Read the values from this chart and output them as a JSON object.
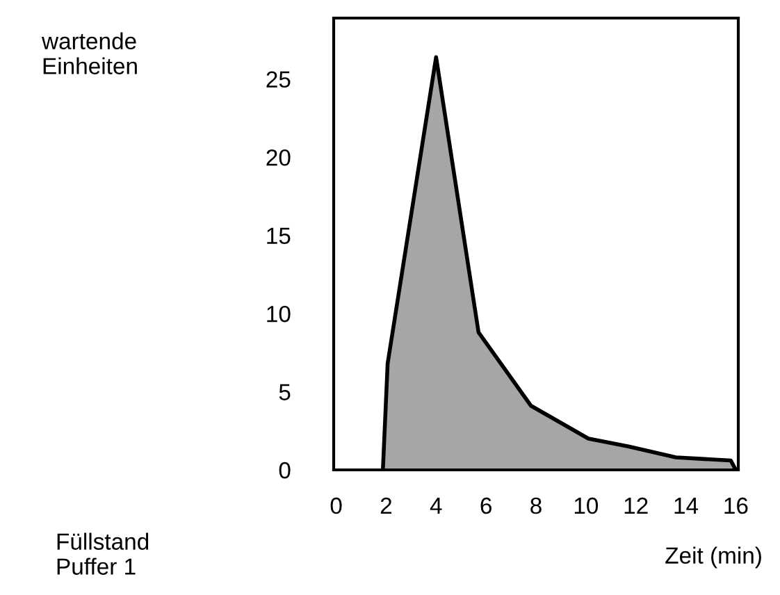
{
  "chart_data": {
    "type": "area",
    "xlabel": "Zeit (min)",
    "annotations": [
      "wartende\nEinheiten",
      "Füllstand\nPuffer 1"
    ],
    "x": [
      1.87,
      2.06,
      4.0,
      5.7,
      7.8,
      10.1,
      11.7,
      13.6,
      15.8,
      16.0
    ],
    "series": [
      {
        "color": "#a6a6a6",
        "values": [
          0,
          6.8,
          26.4,
          8.8,
          4.1,
          2.0,
          1.5,
          0.8,
          0.6,
          0
        ]
      }
    ],
    "xlim": [
      -0.1,
      16.1
    ],
    "ylim": [
      0,
      28.9
    ],
    "xticks": [
      0,
      2,
      4,
      6,
      8,
      10,
      12,
      14,
      16
    ],
    "yticks": [
      0,
      5,
      10,
      15,
      20,
      25
    ],
    "grid": false,
    "legend": false
  }
}
